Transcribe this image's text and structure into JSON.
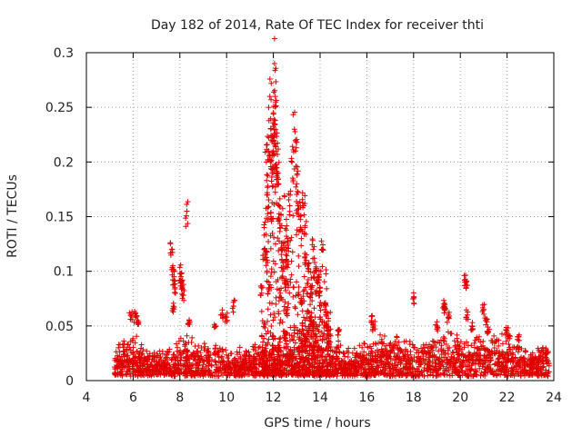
{
  "chart_data": {
    "type": "scatter",
    "title": "Day 182 of 2014, Rate Of TEC Index for receiver thti",
    "xlabel": "GPS time / hours",
    "ylabel": "ROTI / TECUs",
    "xlim": [
      4,
      24
    ],
    "ylim": [
      0,
      0.3
    ],
    "xticks": [
      4,
      6,
      8,
      10,
      12,
      14,
      16,
      18,
      20,
      22,
      24
    ],
    "yticks": [
      0,
      0.05,
      0.1,
      0.15,
      0.2,
      0.25,
      0.3
    ],
    "ytick_labels": [
      "0",
      "0.05",
      "0.1",
      "0.15",
      "0.2",
      "0.25",
      "0.3"
    ],
    "grid": true,
    "marker": "+",
    "series_color": "#e00000",
    "background_band": [
      [
        5.2,
        0.022
      ],
      [
        5.5,
        0.025
      ],
      [
        6.0,
        0.03
      ],
      [
        6.5,
        0.022
      ],
      [
        7.0,
        0.018
      ],
      [
        7.5,
        0.02
      ],
      [
        8.0,
        0.03
      ],
      [
        8.5,
        0.028
      ],
      [
        9.0,
        0.022
      ],
      [
        9.5,
        0.025
      ],
      [
        10.0,
        0.022
      ],
      [
        10.5,
        0.02
      ],
      [
        11.0,
        0.02
      ],
      [
        11.5,
        0.025
      ],
      [
        12.0,
        0.03
      ],
      [
        12.5,
        0.035
      ],
      [
        13.0,
        0.04
      ],
      [
        13.5,
        0.045
      ],
      [
        14.0,
        0.045
      ],
      [
        14.5,
        0.03
      ],
      [
        15.0,
        0.022
      ],
      [
        15.5,
        0.02
      ],
      [
        16.0,
        0.028
      ],
      [
        16.5,
        0.03
      ],
      [
        17.0,
        0.028
      ],
      [
        17.5,
        0.027
      ],
      [
        18.0,
        0.028
      ],
      [
        18.5,
        0.026
      ],
      [
        19.0,
        0.03
      ],
      [
        19.5,
        0.032
      ],
      [
        20.0,
        0.03
      ],
      [
        20.5,
        0.028
      ],
      [
        21.0,
        0.03
      ],
      [
        21.5,
        0.03
      ],
      [
        22.0,
        0.03
      ],
      [
        22.5,
        0.025
      ],
      [
        23.0,
        0.015
      ],
      [
        23.5,
        0.025
      ],
      [
        23.8,
        0.02
      ]
    ],
    "points": [
      [
        7.65,
        0.12
      ],
      [
        7.7,
        0.105
      ],
      [
        7.75,
        0.095
      ],
      [
        7.8,
        0.085
      ],
      [
        7.72,
        0.068
      ],
      [
        8.0,
        0.098
      ],
      [
        8.05,
        0.095
      ],
      [
        8.1,
        0.085
      ],
      [
        8.15,
        0.078
      ],
      [
        8.3,
        0.155
      ],
      [
        8.4,
        0.055
      ],
      [
        9.5,
        0.05
      ],
      [
        9.8,
        0.06
      ],
      [
        10.3,
        0.068
      ],
      [
        10.0,
        0.058
      ],
      [
        5.9,
        0.06
      ],
      [
        6.1,
        0.058
      ],
      [
        6.2,
        0.055
      ],
      [
        11.5,
        0.08
      ],
      [
        11.6,
        0.12
      ],
      [
        11.65,
        0.145
      ],
      [
        11.7,
        0.2
      ],
      [
        11.75,
        0.17
      ],
      [
        11.8,
        0.21
      ],
      [
        11.85,
        0.26
      ],
      [
        11.9,
        0.22
      ],
      [
        11.95,
        0.19
      ],
      [
        11.9,
        0.15
      ],
      [
        12.0,
        0.245
      ],
      [
        12.05,
        0.29
      ],
      [
        12.08,
        0.26
      ],
      [
        12.1,
        0.23
      ],
      [
        12.12,
        0.21
      ],
      [
        12.15,
        0.195
      ],
      [
        12.2,
        0.18
      ],
      [
        12.25,
        0.16
      ],
      [
        12.3,
        0.14
      ],
      [
        12.35,
        0.12
      ],
      [
        12.4,
        0.1
      ],
      [
        12.5,
        0.09
      ],
      [
        12.55,
        0.11
      ],
      [
        12.6,
        0.13
      ],
      [
        12.7,
        0.16
      ],
      [
        12.8,
        0.2
      ],
      [
        12.9,
        0.23
      ],
      [
        12.95,
        0.21
      ],
      [
        13.0,
        0.18
      ],
      [
        13.05,
        0.16
      ],
      [
        13.1,
        0.15
      ],
      [
        13.2,
        0.13
      ],
      [
        13.3,
        0.16
      ],
      [
        13.35,
        0.14
      ],
      [
        13.4,
        0.11
      ],
      [
        13.5,
        0.1
      ],
      [
        13.6,
        0.08
      ],
      [
        13.7,
        0.12
      ],
      [
        13.8,
        0.1
      ],
      [
        13.9,
        0.09
      ],
      [
        14.0,
        0.085
      ],
      [
        14.1,
        0.12
      ],
      [
        14.2,
        0.065
      ],
      [
        14.3,
        0.05
      ],
      [
        14.8,
        0.045
      ],
      [
        12.0,
        0.21
      ],
      [
        12.05,
        0.225
      ],
      [
        11.7,
        0.11
      ],
      [
        11.8,
        0.085
      ],
      [
        12.3,
        0.08
      ],
      [
        12.6,
        0.065
      ],
      [
        13.2,
        0.07
      ],
      [
        13.6,
        0.055
      ],
      [
        16.2,
        0.055
      ],
      [
        16.3,
        0.05
      ],
      [
        18.0,
        0.075
      ],
      [
        19.0,
        0.05
      ],
      [
        19.3,
        0.07
      ],
      [
        19.35,
        0.065
      ],
      [
        19.5,
        0.058
      ],
      [
        20.2,
        0.09
      ],
      [
        20.25,
        0.085
      ],
      [
        20.3,
        0.06
      ],
      [
        20.5,
        0.05
      ],
      [
        21.0,
        0.065
      ],
      [
        21.1,
        0.055
      ],
      [
        21.2,
        0.045
      ],
      [
        22.0,
        0.045
      ],
      [
        22.5,
        0.04
      ],
      [
        23.7,
        0.025
      ]
    ]
  }
}
